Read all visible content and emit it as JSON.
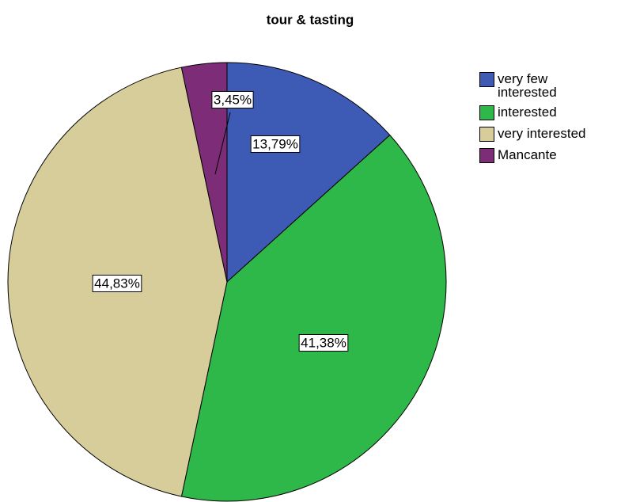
{
  "chart_data": {
    "type": "pie",
    "title": "tour & tasting",
    "categories": [
      "very few interested",
      "interested",
      "very interested",
      "Mancante"
    ],
    "values": [
      13.79,
      41.38,
      44.83,
      3.45
    ],
    "value_labels": [
      "13,79%",
      "41,38%",
      "44,83%",
      "3,45%"
    ],
    "colors": [
      "#3d5bb5",
      "#2fb84a",
      "#d6cd9a",
      "#7d2c78"
    ],
    "legend": "right"
  }
}
